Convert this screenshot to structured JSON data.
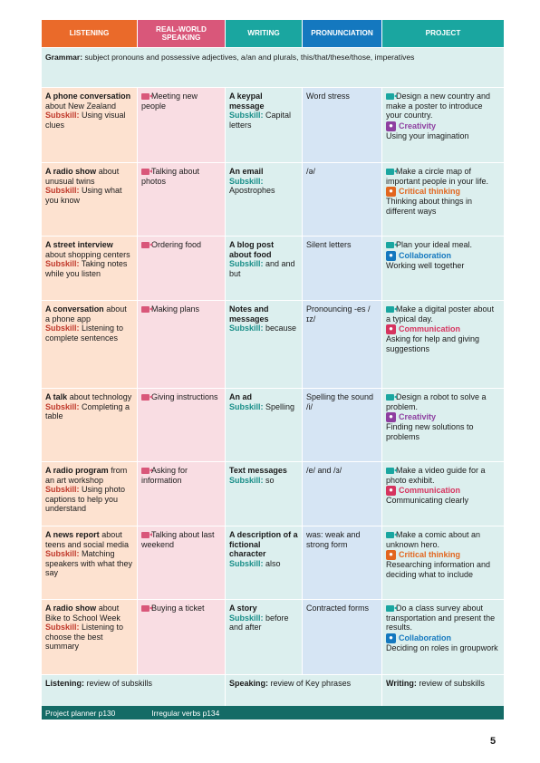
{
  "headers": [
    "LISTENING",
    "REAL-WORLD SPEAKING",
    "WRITING",
    "PRONUNCIATION",
    "PROJECT"
  ],
  "grammar": {
    "label": "Grammar:",
    "text": "subject pronouns and possessive adjectives, a/an and plurals, this/that/these/those, imperatives"
  },
  "subskill_label": "Subskill:",
  "units": [
    {
      "listening_title": "A phone conversation",
      "listening_rest": "about New Zealand",
      "listening_sub": "Using visual clues",
      "speaking": "Meeting new people",
      "writing_title": "A keypal message",
      "writing_sub": "Capital letters",
      "pron": "Word stress",
      "project": "Design a new country and make a poster to introduce your country.",
      "skill": "Creativity",
      "skill_color": "#8e3fa0",
      "skill_desc": "Using your imagination",
      "height": 82
    },
    {
      "listening_title": "A radio show",
      "listening_rest": "about unusual twins",
      "listening_sub": "Using what you know",
      "speaking": "Talking about photos",
      "writing_title": "An email",
      "writing_sub": "Apostrophes",
      "pron": "/ə/",
      "project": "Make a circle map of important people in your life.",
      "skill": "Critical thinking",
      "skill_color": "#e2661f",
      "skill_desc": "Thinking about things in different ways",
      "height": 80
    },
    {
      "listening_title": "A street interview",
      "listening_rest": "about shopping centers",
      "listening_sub": "Taking notes while you listen",
      "speaking": "Ordering food",
      "writing_title": "A blog post about food",
      "writing_sub": "and and but",
      "pron": "Silent letters",
      "project": "Plan your ideal meal.",
      "skill": "Collaboration",
      "skill_color": "#1478bf",
      "skill_desc": "Working well together",
      "height": 70
    },
    {
      "listening_title": "A conversation",
      "listening_rest": "about a phone app",
      "listening_sub": "Listening to complete sentences",
      "speaking": "Making plans",
      "writing_title": "Notes and messages",
      "writing_sub": "because",
      "pron": "Pronouncing -es /ɪz/",
      "project": "Make a digital poster about a typical day.",
      "skill": "Communication",
      "skill_color": "#d6345f",
      "skill_desc": "Asking for help and giving suggestions",
      "height": 96
    },
    {
      "listening_title": "A talk",
      "listening_rest": "about technology",
      "listening_sub": "Completing a table",
      "speaking": "Giving instructions",
      "writing_title": "An ad",
      "writing_sub": "Spelling",
      "pron": "Spelling the sound /i/",
      "project": "Design a robot to solve a problem.",
      "skill": "Creativity",
      "skill_color": "#8e3fa0",
      "skill_desc": "Finding new solutions to problems",
      "height": 80
    },
    {
      "listening_title": "A radio program",
      "listening_rest": "from an art workshop",
      "listening_sub": "Using photo captions to help you understand",
      "speaking": "Asking for information",
      "writing_title": "Text messages",
      "writing_sub": "so",
      "pron": "/e/ and /ɜ/",
      "project": "Make a video guide for a photo exhibit.",
      "skill": "Communication",
      "skill_color": "#d6345f",
      "skill_desc": "Communicating clearly",
      "height": 70
    },
    {
      "listening_title": "A news report",
      "listening_rest": "about teens and social media",
      "listening_sub": "Matching speakers with what they say",
      "speaking": "Talking about last weekend",
      "writing_title": "A description of a fictional character",
      "writing_sub": "also",
      "pron": "was: weak and strong form",
      "project": "Make a comic about an unknown hero.",
      "skill": "Critical thinking",
      "skill_color": "#e2661f",
      "skill_desc": "Researching information and deciding what to include",
      "height": 80
    },
    {
      "listening_title": "A radio show",
      "listening_rest": "about Bike to School Week",
      "listening_sub": "Listening to choose the best summary",
      "speaking": "Buying a ticket",
      "writing_title": "A story",
      "writing_sub": "before and after",
      "pron": "Contracted forms",
      "project": "Do a class survey about transportation and present the results.",
      "skill": "Collaboration",
      "skill_color": "#1478bf",
      "skill_desc": "Deciding on roles in groupwork",
      "height": 82
    }
  ],
  "review": {
    "listening_label": "Listening:",
    "listening_text": "review of subskills",
    "speaking_label": "Speaking:",
    "speaking_text": "review of Key phrases",
    "writing_label": "Writing:",
    "writing_text": "review of subskills"
  },
  "footer": {
    "planner": "Project planner p130",
    "verbs": "Irregular verbs p134"
  },
  "page_number": "5"
}
